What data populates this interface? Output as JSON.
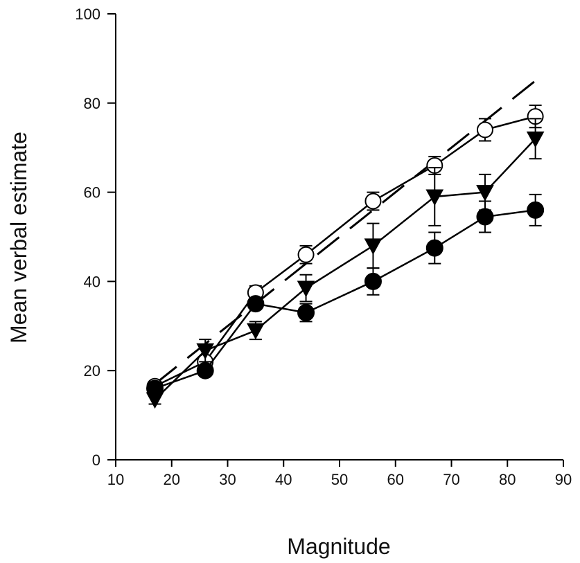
{
  "chart_data": {
    "type": "line",
    "title": "",
    "xlabel": "Magnitude",
    "ylabel": "Mean verbal estimate",
    "xlim": [
      10,
      90
    ],
    "ylim": [
      0,
      100
    ],
    "xticks": [
      10,
      20,
      30,
      40,
      50,
      60,
      70,
      80,
      90
    ],
    "yticks": [
      0,
      20,
      40,
      60,
      80,
      100
    ],
    "grid": false,
    "legend": "none",
    "reference_line": {
      "style": "dashed",
      "x": [
        17,
        85
      ],
      "y": [
        17,
        85
      ]
    },
    "series": [
      {
        "marker": "open-circle",
        "x": [
          17,
          26,
          35,
          44,
          56,
          67,
          76,
          85
        ],
        "y": [
          16.5,
          22,
          37.5,
          46,
          58,
          66,
          74,
          77
        ],
        "err": [
          1,
          1,
          1.5,
          2,
          2,
          2,
          2.5,
          2.5
        ]
      },
      {
        "marker": "filled-triangle-down",
        "x": [
          17,
          26,
          35,
          44,
          56,
          67,
          76,
          85
        ],
        "y": [
          13.5,
          24.5,
          29,
          38.5,
          48,
          59,
          60,
          72
        ],
        "err": [
          1,
          2.5,
          2,
          3,
          5,
          6.5,
          4,
          4.5
        ]
      },
      {
        "marker": "filled-circle",
        "x": [
          17,
          26,
          35,
          44,
          56,
          67,
          76,
          85
        ],
        "y": [
          16,
          20,
          35,
          33,
          40,
          47.5,
          54.5,
          56
        ],
        "err": [
          1,
          1,
          1,
          2,
          3,
          3.5,
          3.5,
          3.5
        ]
      }
    ],
    "colors": {
      "line": "#000000",
      "open_marker_fill": "#ffffff",
      "filled_marker": "#000000"
    }
  }
}
